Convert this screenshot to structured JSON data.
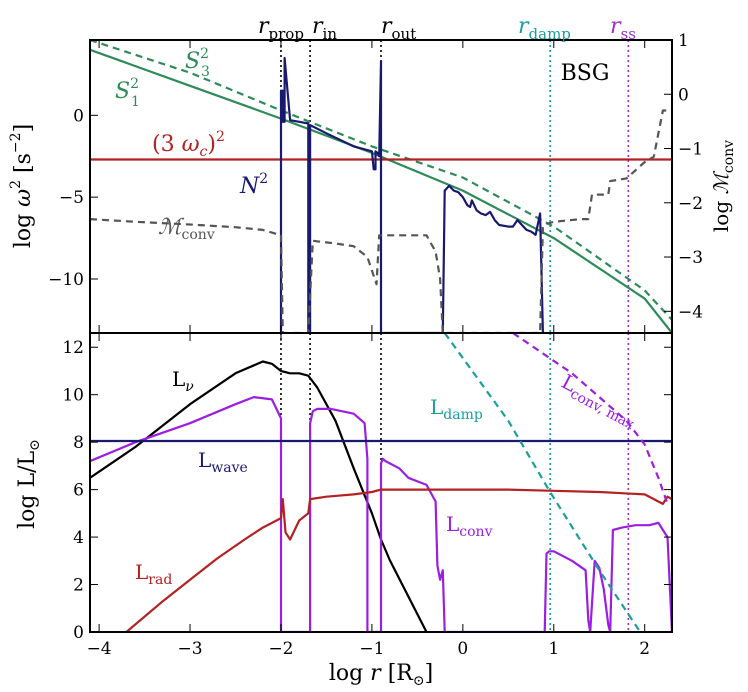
{
  "chart_data": [
    {
      "type": "line",
      "panel": "top",
      "label_text": "BSG",
      "xlim": [
        -4.1,
        2.3
      ],
      "ylim": [
        -13.3,
        4.6
      ],
      "ylabel": "log ω² [s⁻²]",
      "ylabel_right": "log ℳconv",
      "ylim_right": [
        -4.4,
        1.0
      ],
      "yticks": [
        -10,
        -5,
        0
      ],
      "yticks_right": [
        -4,
        -3,
        -2,
        -1,
        0,
        1
      ],
      "tick_labels_y": [
        "−10",
        "−5",
        "0"
      ],
      "tick_labels_y_right": [
        "−4",
        "−3",
        "−2",
        "−1",
        "0",
        "1"
      ],
      "colors": {
        "S1": "#2e8b57",
        "S3": "#2e8b57",
        "wc": "#b22222",
        "N2": "#191970",
        "Mconv": "#555555"
      },
      "series": [
        {
          "name": "S₁²",
          "key": "S1",
          "style": "solid",
          "x": [
            -4.1,
            -3,
            -2,
            -1,
            0,
            1,
            2,
            2.3
          ],
          "y": [
            4.0,
            1.8,
            -0.2,
            -2.3,
            -4.6,
            -7.5,
            -11.2,
            -13.3
          ]
        },
        {
          "name": "S₃²",
          "key": "S3",
          "style": "dashed",
          "x": [
            -4.1,
            -3,
            -2,
            -1,
            0,
            1,
            2,
            2.3
          ],
          "y": [
            4.6,
            2.6,
            0.3,
            -1.9,
            -3.8,
            -6.8,
            -10.7,
            -12.5
          ]
        },
        {
          "name": "(3 ωc)²",
          "key": "wc",
          "style": "solid",
          "x": [
            -4.1,
            2.3
          ],
          "y": [
            -2.7,
            -2.7
          ]
        },
        {
          "name": "N²",
          "key": "N2",
          "style": "solid",
          "x": [
            -2.0,
            -2.0,
            -1.98,
            -1.98,
            -1.96,
            -1.96,
            -1.9,
            -1.8,
            -1.7,
            -1.7,
            -1.68,
            -1.68,
            -1.5,
            -1.2,
            -1.0,
            -0.98,
            -0.96,
            -0.96,
            -0.94,
            -0.92,
            -0.9,
            -0.9,
            -0.22,
            -0.2,
            -0.15,
            -0.1,
            -0.05,
            0.0,
            0.05,
            0.08,
            0.1,
            0.15,
            0.2,
            0.25,
            0.3,
            0.35,
            0.4,
            0.5,
            0.55,
            0.6,
            0.7,
            0.75,
            0.8,
            0.85,
            0.88,
            0.9,
            0.9
          ],
          "y": [
            -13.3,
            1.5,
            1.5,
            -0.4,
            -0.4,
            3.5,
            -0.3,
            -0.4,
            -0.5,
            -13.3,
            -13.3,
            -0.6,
            -1.1,
            -1.9,
            -2.2,
            -3.3,
            -3.3,
            -2.2,
            -2.3,
            -2.5,
            3.3,
            -13.3,
            -13.3,
            -4.6,
            -4.3,
            -4.6,
            -4.7,
            -5.0,
            -5.5,
            -5.6,
            -5.2,
            -5.8,
            -6.0,
            -6.1,
            -5.9,
            -6.4,
            -6.7,
            -6.8,
            -6.8,
            -6.4,
            -7.0,
            -7.1,
            -7.3,
            -6.0,
            -13.3,
            -13.3,
            -13.3
          ]
        },
        {
          "name": "ℳconv",
          "key": "Mconv",
          "style": "dashed",
          "axis": "right",
          "x": [
            -4.1,
            -3.6,
            -3.0,
            -2.5,
            -2.2,
            -2.0,
            -1.98,
            -1.7,
            -1.65,
            -1.4,
            -1.2,
            -1.05,
            -0.95,
            -0.92,
            -0.8,
            -0.6,
            -0.4,
            -0.3,
            -0.25,
            -0.22,
            -0.2,
            0.0,
            0.5,
            0.7,
            0.85,
            0.88,
            0.9,
            1.0,
            1.3,
            1.38,
            1.42,
            1.6,
            1.62,
            1.8,
            2.0,
            2.1,
            2.2,
            2.25,
            2.3
          ],
          "y": [
            -2.3,
            -2.35,
            -2.4,
            -2.45,
            -2.5,
            -2.6,
            -4.4,
            -4.4,
            -2.7,
            -2.75,
            -2.8,
            -3.0,
            -3.5,
            -2.6,
            -2.6,
            -2.6,
            -2.6,
            -2.9,
            -3.4,
            -4.4,
            -4.4,
            -4.4,
            -4.4,
            -4.4,
            -4.4,
            -2.45,
            -2.4,
            -2.35,
            -2.3,
            -2.3,
            -1.85,
            -1.85,
            -1.6,
            -1.55,
            -1.25,
            -1.15,
            -0.3,
            -0.3,
            -0.3
          ]
        }
      ],
      "annotations": [
        {
          "text": "S₁²",
          "color": "#2e8b57"
        },
        {
          "text": "S₃²",
          "color": "#2e8b57"
        },
        {
          "text": "(3 ωc)²",
          "color": "#b22222"
        },
        {
          "text": "N²",
          "color": "#191970"
        },
        {
          "text": "ℳconv",
          "color": "#555555"
        }
      ],
      "markers": [
        {
          "name": "r prop",
          "x": -2.0,
          "color": "#000000"
        },
        {
          "name": "r in",
          "x": -1.68,
          "color": "#000000"
        },
        {
          "name": "r out",
          "x": -0.9,
          "color": "#000000"
        },
        {
          "name": "r damp",
          "x": 0.96,
          "color": "#1a9e9e"
        },
        {
          "name": "r ss",
          "x": 1.82,
          "color": "#9b30d0"
        }
      ]
    },
    {
      "type": "line",
      "panel": "bottom",
      "xlabel": "log r [R⊙]",
      "ylabel": "log L/L⊙",
      "xlim": [
        -4.1,
        2.3
      ],
      "ylim": [
        0,
        12.6
      ],
      "xticks": [
        -4,
        -3,
        -2,
        -1,
        0,
        1,
        2
      ],
      "yticks": [
        0,
        2,
        4,
        6,
        8,
        10,
        12
      ],
      "tick_labels_x": [
        "−4",
        "−3",
        "−2",
        "−1",
        "0",
        "1",
        "2"
      ],
      "tick_labels_y": [
        "0",
        "2",
        "4",
        "6",
        "8",
        "10",
        "12"
      ],
      "colors": {
        "Lnu": "#000000",
        "Lconv": "#9b1fe0",
        "Lwave": "#191970",
        "Lrad": "#b22222",
        "Ldamp": "#1a9e9e",
        "Lconvmax": "#9b1fe0"
      },
      "series": [
        {
          "name": "Lν",
          "key": "Lnu",
          "style": "solid",
          "x": [
            -4.1,
            -3.6,
            -3.0,
            -2.5,
            -2.2,
            -2.1,
            -2.0,
            -1.9,
            -1.8,
            -1.7,
            -1.68,
            -1.6,
            -1.4,
            -1.2,
            -1.0,
            -0.9,
            -0.8,
            -0.6,
            -0.4
          ],
          "y": [
            6.5,
            7.8,
            9.6,
            10.9,
            11.4,
            11.3,
            11.0,
            10.9,
            10.9,
            10.8,
            10.7,
            10.3,
            8.9,
            6.9,
            5.0,
            3.9,
            3.0,
            1.5,
            0.0
          ]
        },
        {
          "name": "Lconv",
          "key": "Lconv",
          "style": "solid",
          "x": [
            -4.1,
            -3.6,
            -3.0,
            -2.5,
            -2.3,
            -2.1,
            -2.0,
            -2.0,
            -1.68,
            -1.68,
            -1.65,
            -1.6,
            -1.45,
            -1.2,
            -1.08,
            -1.05,
            -1.05,
            -0.9,
            -0.9,
            -0.88,
            -0.85,
            -0.7,
            -0.6,
            -0.4,
            -0.3,
            -0.28,
            -0.25,
            -0.22,
            -0.2,
            0.9,
            0.92,
            0.95,
            1.0,
            1.2,
            1.35,
            1.38,
            1.4,
            1.4,
            1.45,
            1.5,
            1.55,
            1.6,
            1.62,
            1.62,
            1.65,
            1.75,
            1.9,
            2.05,
            2.15,
            2.2,
            2.25,
            2.3
          ],
          "y": [
            7.2,
            8.0,
            8.8,
            9.6,
            9.9,
            9.8,
            9.0,
            0.0,
            0.0,
            8.8,
            9.3,
            9.4,
            9.4,
            9.2,
            8.8,
            7.3,
            0.0,
            0.0,
            7.1,
            7.3,
            7.2,
            6.9,
            6.5,
            6.2,
            5.5,
            2.8,
            2.2,
            2.6,
            0.0,
            0.0,
            3.3,
            3.4,
            3.4,
            3.0,
            2.6,
            0.5,
            0.0,
            0.0,
            3.0,
            2.7,
            1.8,
            0.3,
            0.0,
            0.0,
            4.3,
            4.4,
            4.5,
            4.5,
            4.6,
            4.3,
            4.0,
            0.0
          ]
        },
        {
          "name": "Lwave",
          "key": "Lwave",
          "style": "solid",
          "x": [
            -4.1,
            2.3
          ],
          "y": [
            8.05,
            8.05
          ]
        },
        {
          "name": "Lrad",
          "key": "Lrad",
          "style": "solid",
          "x": [
            -3.7,
            -3.3,
            -3.0,
            -2.7,
            -2.4,
            -2.2,
            -2.0,
            -1.98,
            -1.95,
            -1.9,
            -1.8,
            -1.7,
            -1.68,
            -1.5,
            -1.2,
            -1.0,
            -0.9,
            -0.7,
            -0.5,
            0.0,
            0.5,
            1.0,
            1.5,
            2.0,
            2.1,
            2.2,
            2.25,
            2.3
          ],
          "y": [
            0.0,
            1.3,
            2.2,
            3.1,
            3.9,
            4.4,
            4.8,
            5.6,
            4.2,
            3.9,
            4.7,
            5.0,
            5.6,
            5.7,
            5.8,
            5.9,
            6.0,
            6.0,
            6.0,
            6.0,
            6.0,
            5.95,
            5.9,
            5.8,
            5.6,
            5.4,
            5.7,
            5.6
          ]
        },
        {
          "name": "Ldamp",
          "key": "Ldamp",
          "style": "dashed",
          "x": [
            -0.2,
            0.5,
            0.96,
            1.5,
            1.95
          ],
          "y": [
            12.6,
            8.9,
            5.9,
            2.6,
            0.0
          ]
        },
        {
          "name": "Lconv, max",
          "key": "Lconvmax",
          "style": "dashed",
          "x": [
            0.55,
            1.2,
            1.8,
            2.0,
            2.15,
            2.25
          ],
          "y": [
            12.6,
            10.9,
            8.9,
            7.9,
            6.5,
            5.4
          ]
        }
      ],
      "annotations": [
        {
          "text": "Lν",
          "color": "#000000"
        },
        {
          "text": "Lwave",
          "color": "#191970"
        },
        {
          "text": "Ldamp",
          "color": "#1a9e9e"
        },
        {
          "text": "Lconv, max",
          "color": "#9b1fe0"
        },
        {
          "text": "Lconv",
          "color": "#9b1fe0"
        },
        {
          "text": "Lrad",
          "color": "#b22222"
        }
      ]
    }
  ]
}
